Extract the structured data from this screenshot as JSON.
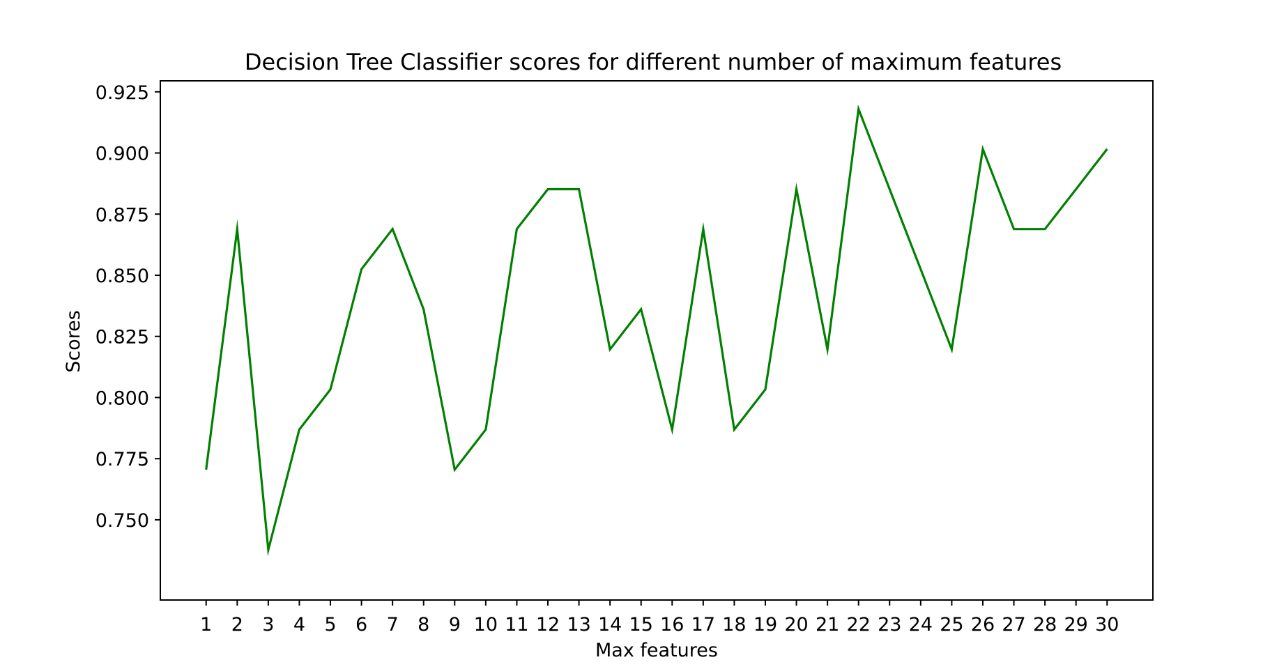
{
  "chart_data": {
    "type": "line",
    "title": "Decision Tree Classifier scores for different number of maximum features",
    "xlabel": "Max features",
    "ylabel": "Scores",
    "x": [
      1,
      2,
      3,
      4,
      5,
      6,
      7,
      8,
      9,
      10,
      11,
      12,
      13,
      14,
      15,
      16,
      17,
      18,
      19,
      20,
      21,
      22,
      23,
      24,
      25,
      26,
      27,
      28,
      29,
      30
    ],
    "series": [
      {
        "color": "#008000",
        "values": [
          0.7705,
          0.8689,
          0.7377,
          0.7869,
          0.8033,
          0.8525,
          0.8689,
          0.8361,
          0.7705,
          0.7869,
          0.8689,
          0.8852,
          0.8852,
          0.8197,
          0.8361,
          0.7869,
          0.8689,
          0.7869,
          0.8033,
          0.8852,
          0.8197,
          0.918,
          0.8852,
          0.8525,
          0.8197,
          0.9016,
          0.8689,
          0.8689,
          0.8852,
          0.9016
        ]
      }
    ],
    "xlim": [
      -0.475,
      31.475
    ],
    "ylim": [
      0.7172,
      0.9295
    ],
    "x_ticks": [
      "1",
      "2",
      "3",
      "4",
      "5",
      "6",
      "7",
      "8",
      "9",
      "10",
      "11",
      "12",
      "13",
      "14",
      "15",
      "16",
      "17",
      "18",
      "19",
      "20",
      "21",
      "22",
      "23",
      "24",
      "25",
      "26",
      "27",
      "28",
      "29",
      "30"
    ],
    "y_ticks": [
      "0.750",
      "0.775",
      "0.800",
      "0.825",
      "0.850",
      "0.875",
      "0.900",
      "0.925"
    ],
    "grid": false,
    "legend": false
  }
}
